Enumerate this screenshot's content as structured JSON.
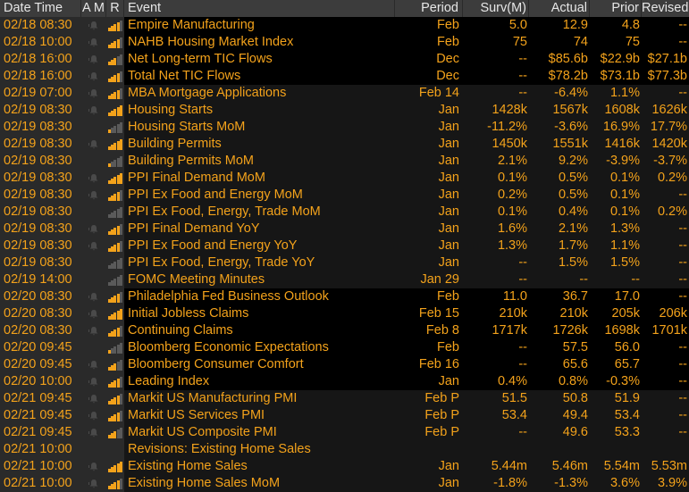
{
  "header": {
    "date_time": "Date Time",
    "am": "A M",
    "r": "R",
    "event": "Event",
    "period": "Period",
    "surv": "Surv(M)",
    "actual": "Actual",
    "prior": "Prior",
    "revised": "Revised"
  },
  "colors": {
    "accent": "#f3a21b",
    "header_bg": "#3c3c3c",
    "alt_bg": "#161616"
  },
  "rows": [
    {
      "dt": "02/18 08:30",
      "event": "Empire Manufacturing",
      "period": "Feb",
      "surv": "5.0",
      "actual": "12.9",
      "prior": "4.8",
      "revised": "--",
      "rel": 4,
      "alarm": true,
      "bg": "black"
    },
    {
      "dt": "02/18 10:00",
      "event": "NAHB Housing Market Index",
      "period": "Feb",
      "surv": "75",
      "actual": "74",
      "prior": "75",
      "revised": "--",
      "rel": 4,
      "alarm": true,
      "bg": "black"
    },
    {
      "dt": "02/18 16:00",
      "event": "Net Long-term TIC Flows",
      "period": "Dec",
      "surv": "--",
      "actual": "$85.6b",
      "prior": "$22.9b",
      "revised": "$27.1b",
      "rel": 3,
      "alarm": true,
      "bg": "black"
    },
    {
      "dt": "02/18 16:00",
      "event": "Total Net TIC Flows",
      "period": "Dec",
      "surv": "--",
      "actual": "$78.2b",
      "prior": "$73.1b",
      "revised": "$77.3b",
      "rel": 4,
      "alarm": true,
      "bg": "black"
    },
    {
      "dt": "02/19 07:00",
      "event": "MBA Mortgage Applications",
      "period": "Feb 14",
      "surv": "--",
      "actual": "-6.4%",
      "prior": "1.1%",
      "revised": "--",
      "rel": 4,
      "alarm": true,
      "bg": "grey"
    },
    {
      "dt": "02/19 08:30",
      "event": "Housing Starts",
      "period": "Jan",
      "surv": "1428k",
      "actual": "1567k",
      "prior": "1608k",
      "revised": "1626k",
      "rel": 5,
      "alarm": true,
      "bg": "grey"
    },
    {
      "dt": "02/19 08:30",
      "event": "Housing Starts MoM",
      "period": "Jan",
      "surv": "-11.2%",
      "actual": "-3.6%",
      "prior": "16.9%",
      "revised": "17.7%",
      "rel": 1,
      "alarm": false,
      "bg": "grey"
    },
    {
      "dt": "02/19 08:30",
      "event": "Building Permits",
      "period": "Jan",
      "surv": "1450k",
      "actual": "1551k",
      "prior": "1416k",
      "revised": "1420k",
      "rel": 5,
      "alarm": true,
      "bg": "grey"
    },
    {
      "dt": "02/19 08:30",
      "event": "Building Permits MoM",
      "period": "Jan",
      "surv": "2.1%",
      "actual": "9.2%",
      "prior": "-3.9%",
      "revised": "-3.7%",
      "rel": 1,
      "alarm": false,
      "bg": "grey"
    },
    {
      "dt": "02/19 08:30",
      "event": "PPI Final Demand MoM",
      "period": "Jan",
      "surv": "0.1%",
      "actual": "0.5%",
      "prior": "0.1%",
      "revised": "0.2%",
      "rel": 5,
      "alarm": true,
      "bg": "grey"
    },
    {
      "dt": "02/19 08:30",
      "event": "PPI Ex Food and Energy MoM",
      "period": "Jan",
      "surv": "0.2%",
      "actual": "0.5%",
      "prior": "0.1%",
      "revised": "--",
      "rel": 4,
      "alarm": true,
      "bg": "grey"
    },
    {
      "dt": "02/19 08:30",
      "event": "PPI Ex Food, Energy, Trade MoM",
      "period": "Jan",
      "surv": "0.1%",
      "actual": "0.4%",
      "prior": "0.1%",
      "revised": "0.2%",
      "rel": 0,
      "alarm": false,
      "bg": "grey"
    },
    {
      "dt": "02/19 08:30",
      "event": "PPI Final Demand YoY",
      "period": "Jan",
      "surv": "1.6%",
      "actual": "2.1%",
      "prior": "1.3%",
      "revised": "--",
      "rel": 4,
      "alarm": true,
      "bg": "grey"
    },
    {
      "dt": "02/19 08:30",
      "event": "PPI Ex Food and Energy YoY",
      "period": "Jan",
      "surv": "1.3%",
      "actual": "1.7%",
      "prior": "1.1%",
      "revised": "--",
      "rel": 4,
      "alarm": true,
      "bg": "grey"
    },
    {
      "dt": "02/19 08:30",
      "event": "PPI Ex Food, Energy, Trade YoY",
      "period": "Jan",
      "surv": "--",
      "actual": "1.5%",
      "prior": "1.5%",
      "revised": "--",
      "rel": 0,
      "alarm": false,
      "bg": "grey"
    },
    {
      "dt": "02/19 14:00",
      "event": "FOMC Meeting Minutes",
      "period": "Jan 29",
      "surv": "--",
      "actual": "--",
      "prior": "--",
      "revised": "--",
      "rel": 0,
      "alarm": false,
      "bg": "grey"
    },
    {
      "dt": "02/20 08:30",
      "event": "Philadelphia Fed Business Outlook",
      "period": "Feb",
      "surv": "11.0",
      "actual": "36.7",
      "prior": "17.0",
      "revised": "--",
      "rel": 4,
      "alarm": true,
      "bg": "black"
    },
    {
      "dt": "02/20 08:30",
      "event": "Initial Jobless Claims",
      "period": "Feb 15",
      "surv": "210k",
      "actual": "210k",
      "prior": "205k",
      "revised": "206k",
      "rel": 5,
      "alarm": true,
      "bg": "black"
    },
    {
      "dt": "02/20 08:30",
      "event": "Continuing Claims",
      "period": "Feb 8",
      "surv": "1717k",
      "actual": "1726k",
      "prior": "1698k",
      "revised": "1701k",
      "rel": 4,
      "alarm": true,
      "bg": "black"
    },
    {
      "dt": "02/20 09:45",
      "event": "Bloomberg Economic Expectations",
      "period": "Feb",
      "surv": "--",
      "actual": "57.5",
      "prior": "56.0",
      "revised": "--",
      "rel": 1,
      "alarm": false,
      "bg": "black"
    },
    {
      "dt": "02/20 09:45",
      "event": "Bloomberg Consumer Comfort",
      "period": "Feb 16",
      "surv": "--",
      "actual": "65.6",
      "prior": "65.7",
      "revised": "--",
      "rel": 3,
      "alarm": true,
      "bg": "black"
    },
    {
      "dt": "02/20 10:00",
      "event": "Leading Index",
      "period": "Jan",
      "surv": "0.4%",
      "actual": "0.8%",
      "prior": "-0.3%",
      "revised": "--",
      "rel": 4,
      "alarm": true,
      "bg": "black"
    },
    {
      "dt": "02/21 09:45",
      "event": "Markit US Manufacturing PMI",
      "period": "Feb P",
      "surv": "51.5",
      "actual": "50.8",
      "prior": "51.9",
      "revised": "--",
      "rel": 4,
      "alarm": true,
      "bg": "grey"
    },
    {
      "dt": "02/21 09:45",
      "event": "Markit US Services PMI",
      "period": "Feb P",
      "surv": "53.4",
      "actual": "49.4",
      "prior": "53.4",
      "revised": "--",
      "rel": 4,
      "alarm": true,
      "bg": "grey"
    },
    {
      "dt": "02/21 09:45",
      "event": "Markit US Composite PMI",
      "period": "Feb P",
      "surv": "--",
      "actual": "49.6",
      "prior": "53.3",
      "revised": "--",
      "rel": 3,
      "alarm": true,
      "bg": "grey"
    },
    {
      "dt": "02/21 10:00",
      "event": "Revisions: Existing Home Sales",
      "period": "",
      "surv": "",
      "actual": "",
      "prior": "",
      "revised": "",
      "rel": -1,
      "alarm": false,
      "bg": "grey"
    },
    {
      "dt": "02/21 10:00",
      "event": "Existing Home Sales",
      "period": "Jan",
      "surv": "5.44m",
      "actual": "5.46m",
      "prior": "5.54m",
      "revised": "5.53m",
      "rel": 5,
      "alarm": true,
      "bg": "grey"
    },
    {
      "dt": "02/21 10:00",
      "event": "Existing Home Sales MoM",
      "period": "Jan",
      "surv": "-1.8%",
      "actual": "-1.3%",
      "prior": "3.6%",
      "revised": "3.9%",
      "rel": 4,
      "alarm": true,
      "bg": "grey"
    }
  ]
}
